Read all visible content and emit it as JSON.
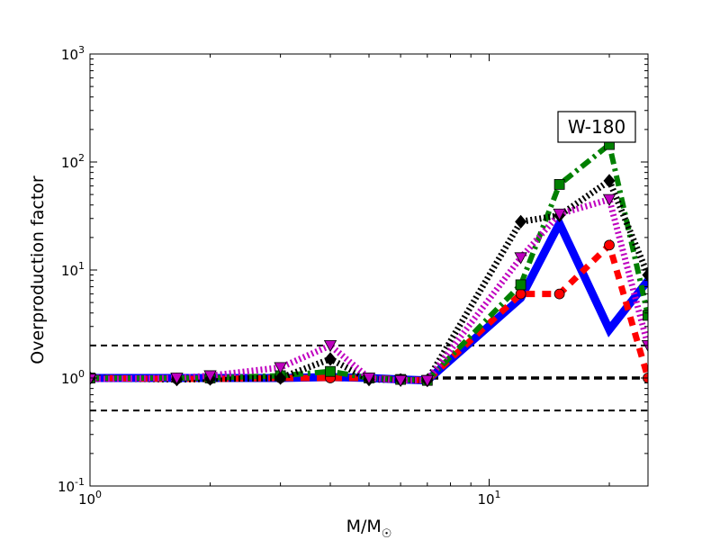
{
  "chart_data": {
    "type": "line",
    "xlabel": "M/M",
    "xlabel_sub": "☉",
    "ylabel": "Overproduction factor",
    "xscale": "log",
    "yscale": "log",
    "xlim": [
      1,
      25
    ],
    "ylim": [
      0.1,
      1000
    ],
    "x_ticks": [
      {
        "value": 1,
        "base": "10",
        "exp": "0"
      },
      {
        "value": 10,
        "base": "10",
        "exp": "1"
      }
    ],
    "y_ticks": [
      {
        "value": 0.1,
        "base": "10",
        "exp": "-1"
      },
      {
        "value": 1,
        "base": "10",
        "exp": "0"
      },
      {
        "value": 10,
        "base": "10",
        "exp": "1"
      },
      {
        "value": 100,
        "base": "10",
        "exp": "2"
      },
      {
        "value": 1000,
        "base": "10",
        "exp": "3"
      }
    ],
    "annotation": "W-180",
    "annotation_position": "top-right",
    "reference_lines": [
      {
        "y": 2,
        "style": "dashed",
        "color": "#000000",
        "weight": "thin"
      },
      {
        "y": 1,
        "style": "dashed",
        "color": "#000000",
        "weight": "thick"
      },
      {
        "y": 0.5,
        "style": "dashed",
        "color": "#000000",
        "weight": "thin"
      }
    ],
    "series": [
      {
        "color": "#0000ff",
        "line_style": "solid",
        "line_weight": "thick",
        "marker": "none",
        "points": [
          [
            1,
            1.0
          ],
          [
            2,
            1.0
          ],
          [
            3,
            1.0
          ],
          [
            4,
            1.02
          ],
          [
            5,
            1.0
          ],
          [
            6,
            0.97
          ],
          [
            7,
            0.95
          ],
          [
            12,
            5.5
          ],
          [
            15,
            27
          ],
          [
            20,
            2.8
          ],
          [
            25,
            8
          ]
        ]
      },
      {
        "color": "#ff0000",
        "line_style": "dashed",
        "line_weight": "medium",
        "marker": "circle",
        "points": [
          [
            1,
            1.0
          ],
          [
            1.65,
            0.98
          ],
          [
            2,
            0.98
          ],
          [
            3,
            1.0
          ],
          [
            4,
            1.0
          ],
          [
            5,
            1.0
          ],
          [
            6,
            0.97
          ],
          [
            7,
            0.95
          ],
          [
            12,
            6.0
          ],
          [
            15,
            6.0
          ],
          [
            20,
            17
          ],
          [
            25,
            1.0
          ]
        ]
      },
      {
        "color": "#008000",
        "line_style": "dash-dot",
        "line_weight": "medium",
        "marker": "square",
        "points": [
          [
            1,
            1.0
          ],
          [
            2,
            1.0
          ],
          [
            3,
            1.05
          ],
          [
            4,
            1.15
          ],
          [
            5,
            1.0
          ],
          [
            6,
            0.97
          ],
          [
            7,
            0.95
          ],
          [
            12,
            7.3
          ],
          [
            15,
            62
          ],
          [
            20,
            145
          ],
          [
            25,
            3.8
          ]
        ]
      },
      {
        "color": "#000000",
        "line_style": "dotted",
        "line_weight": "medium",
        "marker": "diamond",
        "points": [
          [
            1,
            1.0
          ],
          [
            1.65,
            0.97
          ],
          [
            2,
            0.98
          ],
          [
            3,
            1.0
          ],
          [
            4,
            1.5
          ],
          [
            5,
            0.97
          ],
          [
            6,
            0.96
          ],
          [
            7,
            0.95
          ],
          [
            12,
            28
          ],
          [
            15,
            32
          ],
          [
            20,
            67
          ],
          [
            25,
            9
          ]
        ]
      },
      {
        "color": "#bf00bf",
        "line_style": "dotted",
        "line_weight": "medium",
        "marker": "triangle-down",
        "points": [
          [
            1,
            0.98
          ],
          [
            1.65,
            1.0
          ],
          [
            2,
            1.05
          ],
          [
            3,
            1.25
          ],
          [
            4,
            2.0
          ],
          [
            5,
            1.0
          ],
          [
            6,
            0.95
          ],
          [
            7,
            0.95
          ],
          [
            12,
            13
          ],
          [
            15,
            33
          ],
          [
            20,
            45
          ],
          [
            25,
            2.0
          ]
        ]
      }
    ]
  }
}
